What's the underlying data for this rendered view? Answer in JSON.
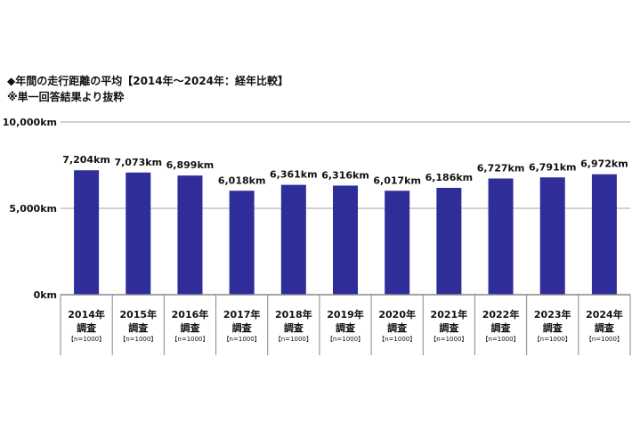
{
  "header": {
    "title": "◆年間の走行距離の平均【2014年～2024年：経年比較】",
    "subtitle": "※単一回答結果より抜粋"
  },
  "colors": {
    "bar": "#2e2d9a",
    "gridline": "#b8b8b8",
    "axis": "#888888",
    "text": "#111111"
  },
  "chart_data": {
    "type": "bar",
    "title": "年間の走行距離の平均【2014年～2024年：経年比較】",
    "categories": [
      "2014年調査",
      "2015年調査",
      "2016年調査",
      "2017年調査",
      "2018年調査",
      "2019年調査",
      "2020年調査",
      "2021年調査",
      "2022年調査",
      "2023年調査",
      "2024年調査"
    ],
    "values": [
      7204,
      7073,
      6899,
      6018,
      6361,
      6316,
      6017,
      6186,
      6727,
      6791,
      6972
    ],
    "data_labels": [
      "7,204km",
      "7,073km",
      "6,899km",
      "6,018km",
      "6,361km",
      "6,316km",
      "6,017km",
      "6,186km",
      "6,727km",
      "6,791km",
      "6,972km"
    ],
    "ylim": [
      0,
      10000
    ],
    "yticks": [
      0,
      5000,
      10000
    ],
    "ytick_labels": [
      "0km",
      "5,000km",
      "10,000km"
    ],
    "xlabel": "",
    "ylabel": "",
    "grid": true,
    "category_parts": [
      {
        "year": "2014年",
        "label": "調査",
        "n": "【n=1000】"
      },
      {
        "year": "2015年",
        "label": "調査",
        "n": "【n=1000】"
      },
      {
        "year": "2016年",
        "label": "調査",
        "n": "【n=1000】"
      },
      {
        "year": "2017年",
        "label": "調査",
        "n": "【n=1000】"
      },
      {
        "year": "2018年",
        "label": "調査",
        "n": "【n=1000】"
      },
      {
        "year": "2019年",
        "label": "調査",
        "n": "【n=1000】"
      },
      {
        "year": "2020年",
        "label": "調査",
        "n": "【n=1000】"
      },
      {
        "year": "2021年",
        "label": "調査",
        "n": "【n=1000】"
      },
      {
        "year": "2022年",
        "label": "調査",
        "n": "【n=1000】"
      },
      {
        "year": "2023年",
        "label": "調査",
        "n": "【n=1000】"
      },
      {
        "year": "2024年",
        "label": "調査",
        "n": "【n=1000】"
      }
    ]
  }
}
